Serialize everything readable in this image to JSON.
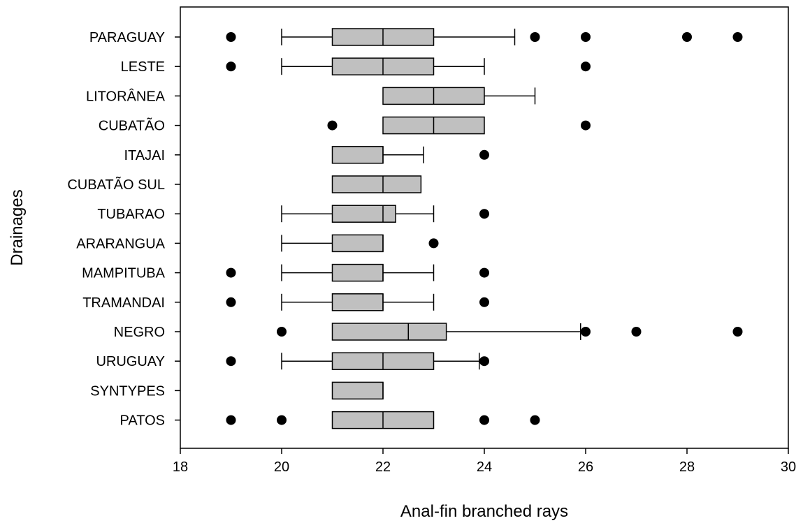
{
  "chart_data": {
    "type": "box",
    "orientation": "horizontal",
    "xlabel": "Anal-fin branched rays",
    "ylabel": "Drainages",
    "xlim": [
      18,
      30
    ],
    "xticks": [
      18,
      20,
      22,
      24,
      26,
      28,
      30
    ],
    "grid": false,
    "box_color": "#c0c0c0",
    "categories": [
      "PARAGUAY",
      "LESTE",
      "LITORÂNEA ",
      "CUBATÃO",
      "ITAJAI",
      "CUBATÃO SUL",
      "TUBARAO",
      "ARARANGUA",
      "MAMPITUBA",
      "TRAMANDAI",
      "NEGRO",
      "URUGUAY",
      "SYNTYPES",
      "PATOS"
    ],
    "boxes": [
      {
        "category": "PARAGUAY",
        "whisker_low": 20,
        "q1": 21,
        "median": 22,
        "q3": 23,
        "whisker_high": 24.6,
        "outliers": [
          19,
          25,
          26,
          28,
          29
        ]
      },
      {
        "category": "LESTE",
        "whisker_low": 20,
        "q1": 21,
        "median": 22,
        "q3": 23,
        "whisker_high": 24,
        "outliers": [
          19,
          26
        ]
      },
      {
        "category": "LITORÂNEA ",
        "whisker_low": 22,
        "q1": 22,
        "median": 23,
        "q3": 24,
        "whisker_high": 25,
        "outliers": []
      },
      {
        "category": "CUBATÃO",
        "whisker_low": 22,
        "q1": 22,
        "median": 23,
        "q3": 24,
        "whisker_high": 24,
        "outliers": [
          21,
          26
        ]
      },
      {
        "category": "ITAJAI",
        "whisker_low": 21,
        "q1": 21,
        "median": 22,
        "q3": 22,
        "whisker_high": 22.8,
        "outliers": [
          24
        ]
      },
      {
        "category": "CUBATÃO SUL",
        "whisker_low": 21,
        "q1": 21,
        "median": 22,
        "q3": 22.75,
        "whisker_high": 22.75,
        "outliers": []
      },
      {
        "category": "TUBARAO",
        "whisker_low": 20,
        "q1": 21,
        "median": 22,
        "q3": 22.25,
        "whisker_high": 23,
        "outliers": [
          24
        ]
      },
      {
        "category": "ARARANGUA",
        "whisker_low": 20,
        "q1": 21,
        "median": 22,
        "q3": 22,
        "whisker_high": 22,
        "outliers": [
          23
        ]
      },
      {
        "category": "MAMPITUBA",
        "whisker_low": 20,
        "q1": 21,
        "median": 22,
        "q3": 22,
        "whisker_high": 23,
        "outliers": [
          19,
          24
        ]
      },
      {
        "category": "TRAMANDAI",
        "whisker_low": 20,
        "q1": 21,
        "median": 22,
        "q3": 22,
        "whisker_high": 23,
        "outliers": [
          19,
          24
        ]
      },
      {
        "category": "NEGRO",
        "whisker_low": 21,
        "q1": 21,
        "median": 22.5,
        "q3": 23.25,
        "whisker_high": 25.9,
        "outliers": [
          20,
          26,
          27,
          29
        ]
      },
      {
        "category": "URUGUAY",
        "whisker_low": 20,
        "q1": 21,
        "median": 22,
        "q3": 23,
        "whisker_high": 23.9,
        "outliers": [
          19,
          24
        ]
      },
      {
        "category": "SYNTYPES",
        "whisker_low": 21,
        "q1": 21,
        "median": 22,
        "q3": 22,
        "whisker_high": 22,
        "outliers": []
      },
      {
        "category": "PATOS",
        "whisker_low": 21,
        "q1": 21,
        "median": 22,
        "q3": 23,
        "whisker_high": 23,
        "outliers": [
          19,
          20,
          24,
          25
        ]
      }
    ]
  }
}
